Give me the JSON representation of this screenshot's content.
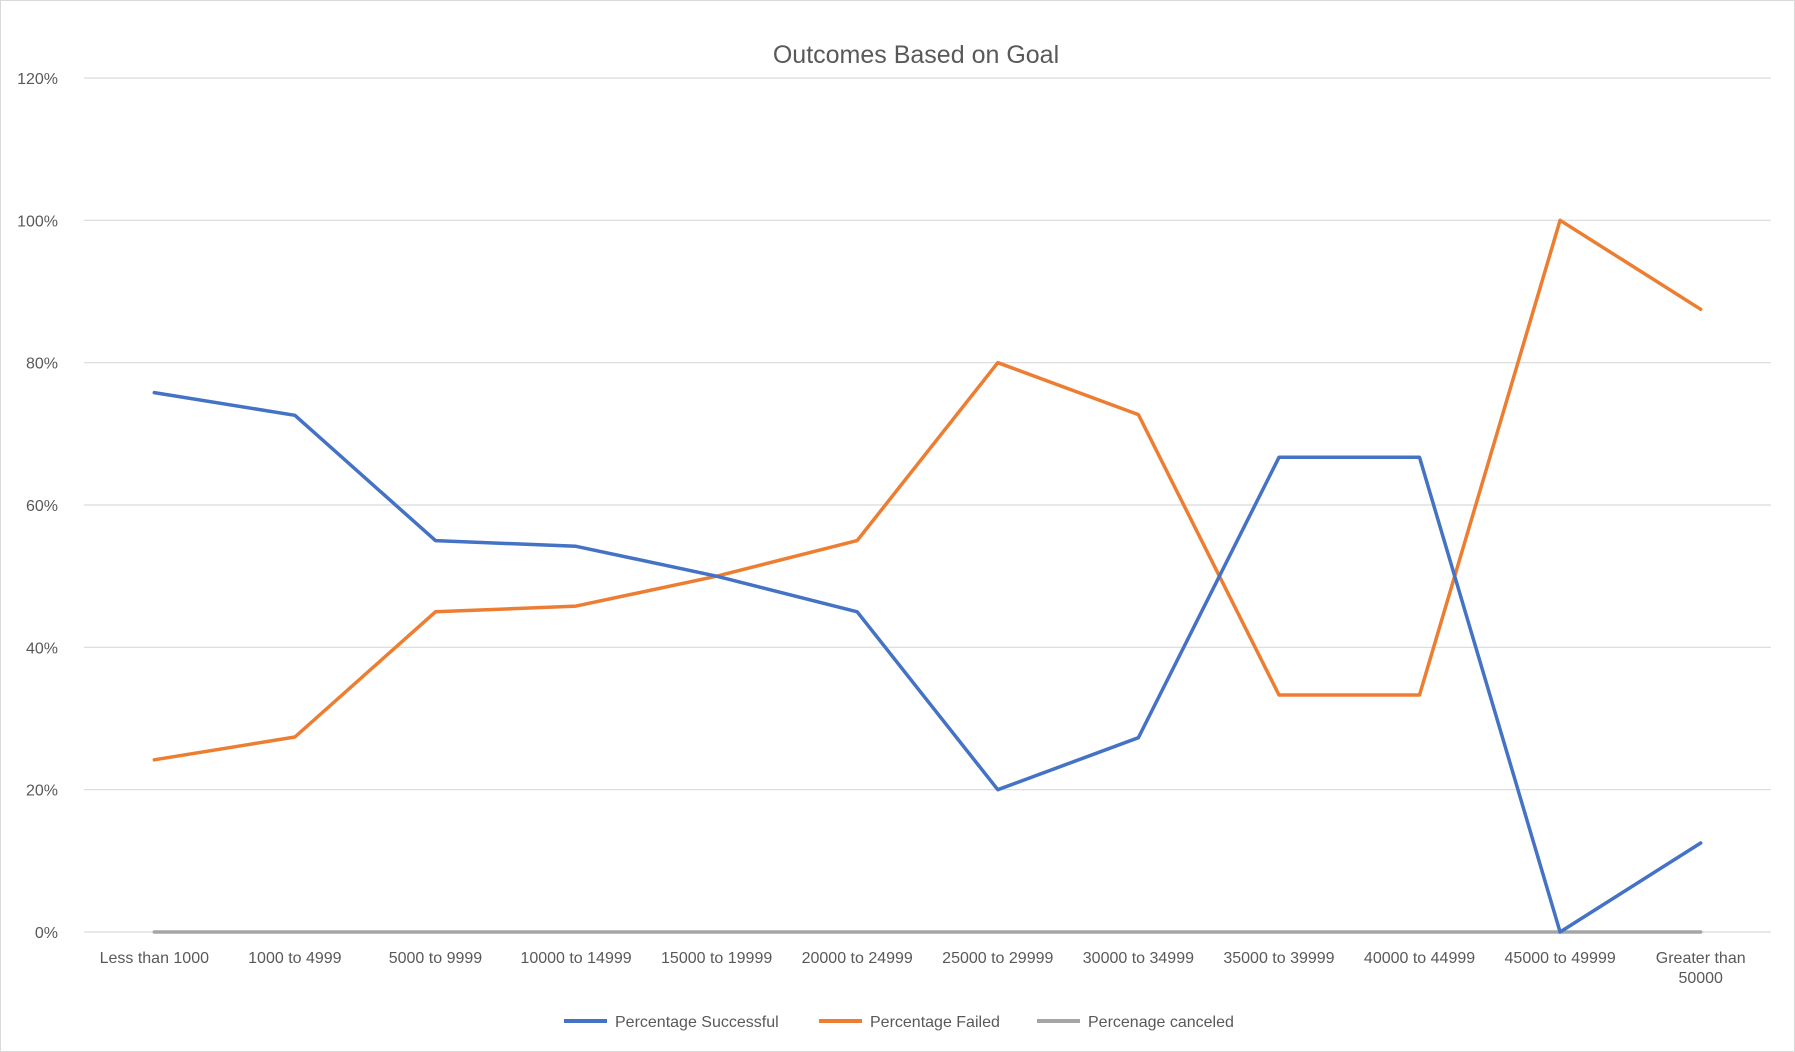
{
  "chart_data": {
    "type": "line",
    "title": "Outcomes Based on Goal",
    "xlabel": "",
    "ylabel": "",
    "categories": [
      "Less than 1000",
      "1000 to 4999",
      "5000 to 9999",
      "10000 to 14999",
      "15000 to 19999",
      "20000 to 24999",
      "25000 to 29999",
      "30000 to 34999",
      "35000 to 39999",
      "40000 to 44999",
      "45000 to 49999",
      "Greater than 50000"
    ],
    "y_ticks": [
      "0%",
      "20%",
      "40%",
      "60%",
      "80%",
      "100%",
      "120%"
    ],
    "ylim": [
      0,
      1.2
    ],
    "grid": true,
    "legend_position": "bottom",
    "series": [
      {
        "name": "Percentage Successful",
        "color": "#4472c4",
        "values": [
          0.758,
          0.726,
          0.55,
          0.542,
          0.5,
          0.45,
          0.2,
          0.273,
          0.667,
          0.667,
          0.0,
          0.125
        ]
      },
      {
        "name": "Percentage Failed",
        "color": "#ed7d31",
        "values": [
          0.242,
          0.274,
          0.45,
          0.458,
          0.5,
          0.55,
          0.8,
          0.727,
          0.333,
          0.333,
          1.0,
          0.875
        ]
      },
      {
        "name": "Percenage canceled",
        "color": "#a5a5a5",
        "values": [
          0,
          0,
          0,
          0,
          0,
          0,
          0,
          0,
          0,
          0,
          0,
          0
        ]
      }
    ]
  }
}
